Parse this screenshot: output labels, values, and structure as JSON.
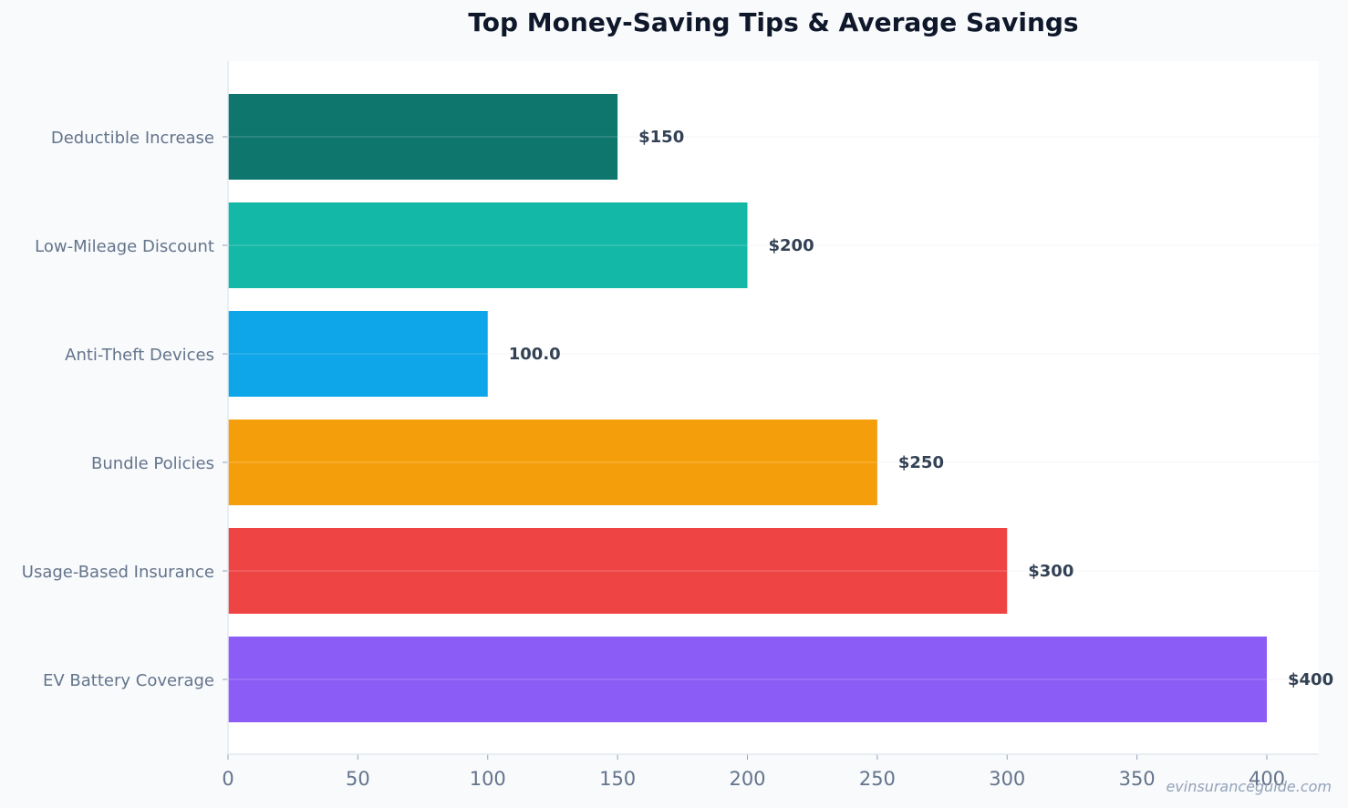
{
  "watermark": "evinsuranceguide.com",
  "chart_data": {
    "type": "bar",
    "orientation": "horizontal",
    "title": "Top Money-Saving Tips & Average Savings",
    "xlabel": "",
    "ylabel": "",
    "xlim": [
      0,
      420
    ],
    "xticks": [
      0,
      50,
      100,
      150,
      200,
      250,
      300,
      350,
      400
    ],
    "grid": true,
    "categories": [
      "Deductible Increase",
      "Low-Mileage Discount",
      "Anti-Theft Devices",
      "Bundle Policies",
      "Usage-Based Insurance",
      "EV Battery Coverage"
    ],
    "values": [
      150,
      200,
      100,
      250,
      300,
      400
    ],
    "value_labels": [
      "$150",
      "$200",
      "100.0",
      "$250",
      "$300",
      "$400"
    ],
    "colors": [
      "#0f766e",
      "#14b8a6",
      "#0ea5e9",
      "#f59e0b",
      "#ef4444",
      "#8b5cf6"
    ]
  }
}
